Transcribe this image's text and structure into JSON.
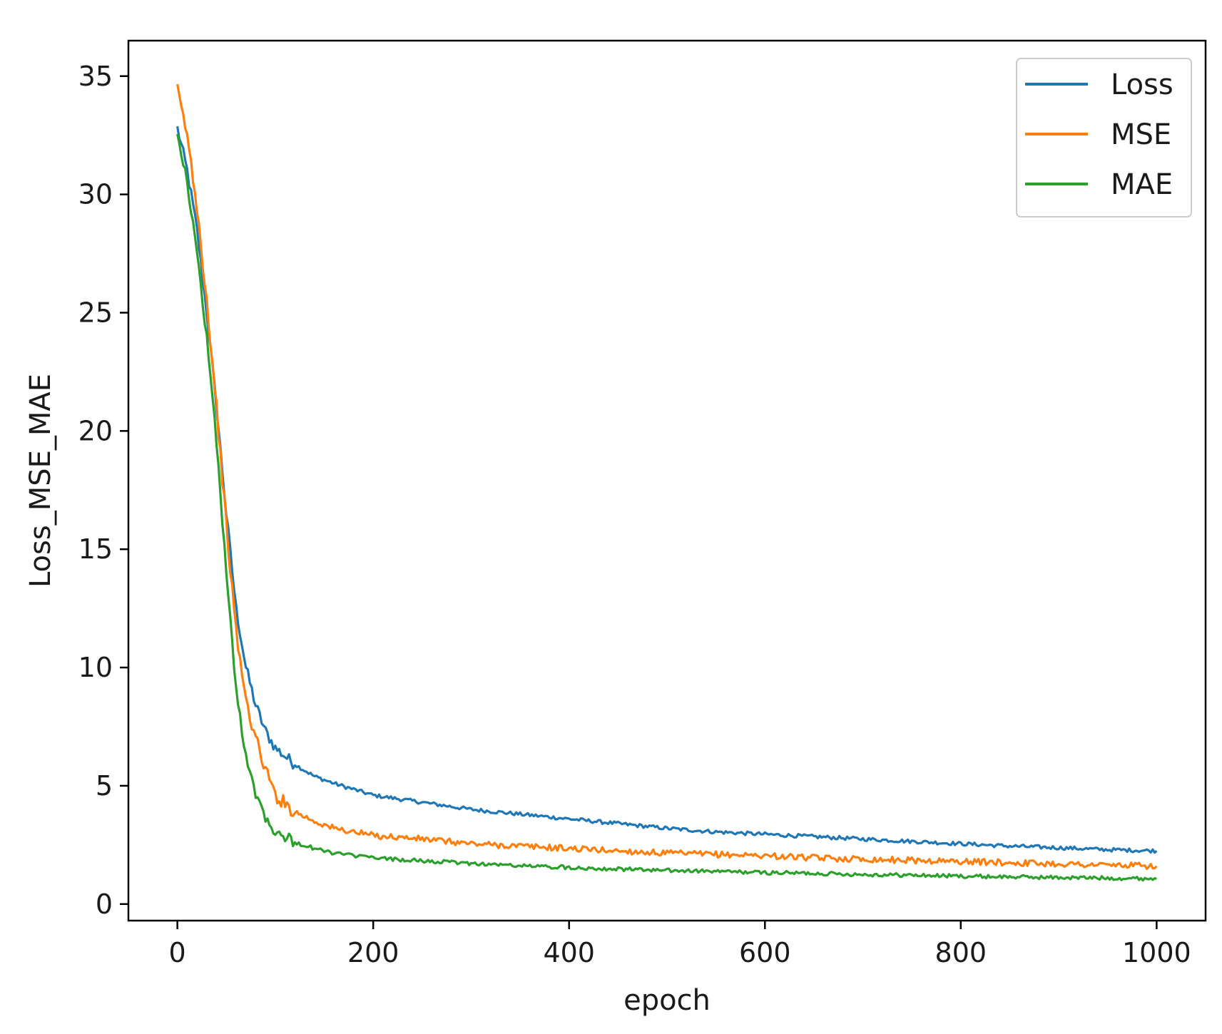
{
  "chart_data": {
    "type": "line",
    "title": "",
    "xlabel": "epoch",
    "ylabel": "Loss_MSE_MAE",
    "xlim": [
      -50,
      1050
    ],
    "ylim": [
      -0.7,
      36.5
    ],
    "xticks": [
      0,
      200,
      400,
      600,
      800,
      1000
    ],
    "yticks": [
      0,
      5,
      10,
      15,
      20,
      25,
      30,
      35
    ],
    "xtick_labels": [
      "0",
      "200",
      "400",
      "600",
      "800",
      "1000"
    ],
    "ytick_labels": [
      "0",
      "5",
      "10",
      "15",
      "20",
      "25",
      "30",
      "35"
    ],
    "grid": false,
    "legend_position": "top-right",
    "legend": [
      "Loss",
      "MSE",
      "MAE"
    ],
    "series": [
      {
        "name": "Loss",
        "color": "#1f77b4",
        "x": [
          0,
          10,
          20,
          30,
          40,
          50,
          60,
          70,
          80,
          90,
          100,
          120,
          140,
          160,
          180,
          200,
          250,
          300,
          350,
          400,
          450,
          500,
          550,
          600,
          650,
          700,
          750,
          800,
          850,
          900,
          950,
          1000
        ],
        "y": [
          32.8,
          31.0,
          28.5,
          25.0,
          21.0,
          16.5,
          12.5,
          10.0,
          8.4,
          7.3,
          6.6,
          5.9,
          5.4,
          5.1,
          4.85,
          4.6,
          4.3,
          4.0,
          3.8,
          3.6,
          3.4,
          3.2,
          3.05,
          2.95,
          2.85,
          2.75,
          2.65,
          2.55,
          2.45,
          2.38,
          2.3,
          2.25
        ]
      },
      {
        "name": "MSE",
        "color": "#ff7f0e",
        "x": [
          0,
          10,
          20,
          30,
          40,
          50,
          60,
          70,
          80,
          90,
          100,
          120,
          140,
          160,
          180,
          200,
          250,
          300,
          350,
          400,
          450,
          500,
          550,
          600,
          650,
          700,
          750,
          800,
          850,
          900,
          950,
          1000
        ],
        "y": [
          34.4,
          32.5,
          29.5,
          25.5,
          21.0,
          16.0,
          11.5,
          8.6,
          7.0,
          5.7,
          4.6,
          3.9,
          3.5,
          3.2,
          3.05,
          2.9,
          2.75,
          2.55,
          2.45,
          2.35,
          2.25,
          2.15,
          2.1,
          2.05,
          1.95,
          1.9,
          1.85,
          1.8,
          1.75,
          1.7,
          1.65,
          1.6
        ]
      },
      {
        "name": "MAE",
        "color": "#2ca02c",
        "x": [
          0,
          10,
          20,
          30,
          40,
          50,
          60,
          70,
          80,
          90,
          100,
          120,
          140,
          160,
          180,
          200,
          250,
          300,
          350,
          400,
          450,
          500,
          550,
          600,
          650,
          700,
          750,
          800,
          850,
          900,
          950,
          1000
        ],
        "y": [
          32.7,
          30.5,
          27.5,
          24.0,
          19.5,
          14.0,
          9.0,
          6.3,
          4.7,
          3.7,
          3.1,
          2.6,
          2.35,
          2.15,
          2.05,
          1.95,
          1.82,
          1.72,
          1.62,
          1.55,
          1.48,
          1.42,
          1.38,
          1.33,
          1.3,
          1.25,
          1.22,
          1.18,
          1.15,
          1.12,
          1.1,
          1.07
        ]
      }
    ]
  }
}
